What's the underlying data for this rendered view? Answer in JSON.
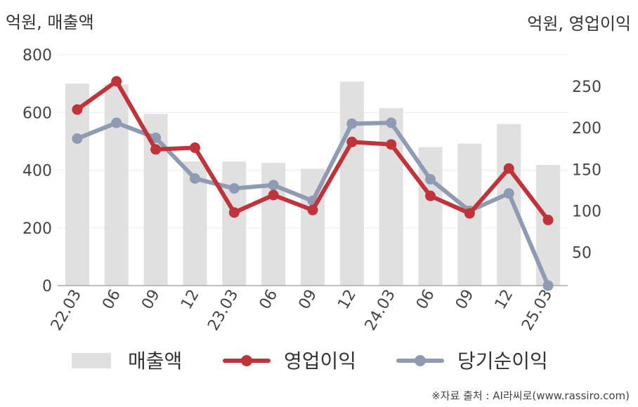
{
  "chart_data": {
    "type": "bar+line",
    "categories": [
      "22.03",
      "06",
      "09",
      "12",
      "23.03",
      "06",
      "09",
      "12",
      "24.03",
      "06",
      "09",
      "12",
      "25.03"
    ],
    "left_axis": {
      "label": "억원, 매출액",
      "ylim": [
        0,
        800
      ],
      "ticks": [
        "0",
        "200",
        "400",
        "600",
        "800"
      ]
    },
    "right_axis": {
      "label": "억원, 영업이익",
      "ylim": [
        10,
        288
      ],
      "ticks": [
        "50",
        "100",
        "150",
        "200",
        "250"
      ]
    },
    "series": [
      {
        "name": "매출액",
        "kind": "bar",
        "axis": "left",
        "color": "#e0e0e0",
        "values": [
          700,
          697,
          595,
          430,
          430,
          425,
          405,
          707,
          615,
          480,
          492,
          560,
          418
        ]
      },
      {
        "name": "영업이익",
        "kind": "line",
        "axis": "right",
        "color": "#c0333a",
        "values": [
          222,
          256,
          174,
          176,
          98,
          119,
          101,
          183,
          180,
          118,
          97,
          151,
          89
        ]
      },
      {
        "name": "당기순이익",
        "kind": "line",
        "axis": "right",
        "color": "#8f9bb3",
        "values": [
          187,
          206,
          188,
          139,
          127,
          131,
          112,
          205,
          206,
          138,
          100,
          121,
          10
        ]
      }
    ],
    "grid": true,
    "legend": "bottom"
  },
  "source": "※자료 출처 : AI라씨로(www.rassiro.com)"
}
